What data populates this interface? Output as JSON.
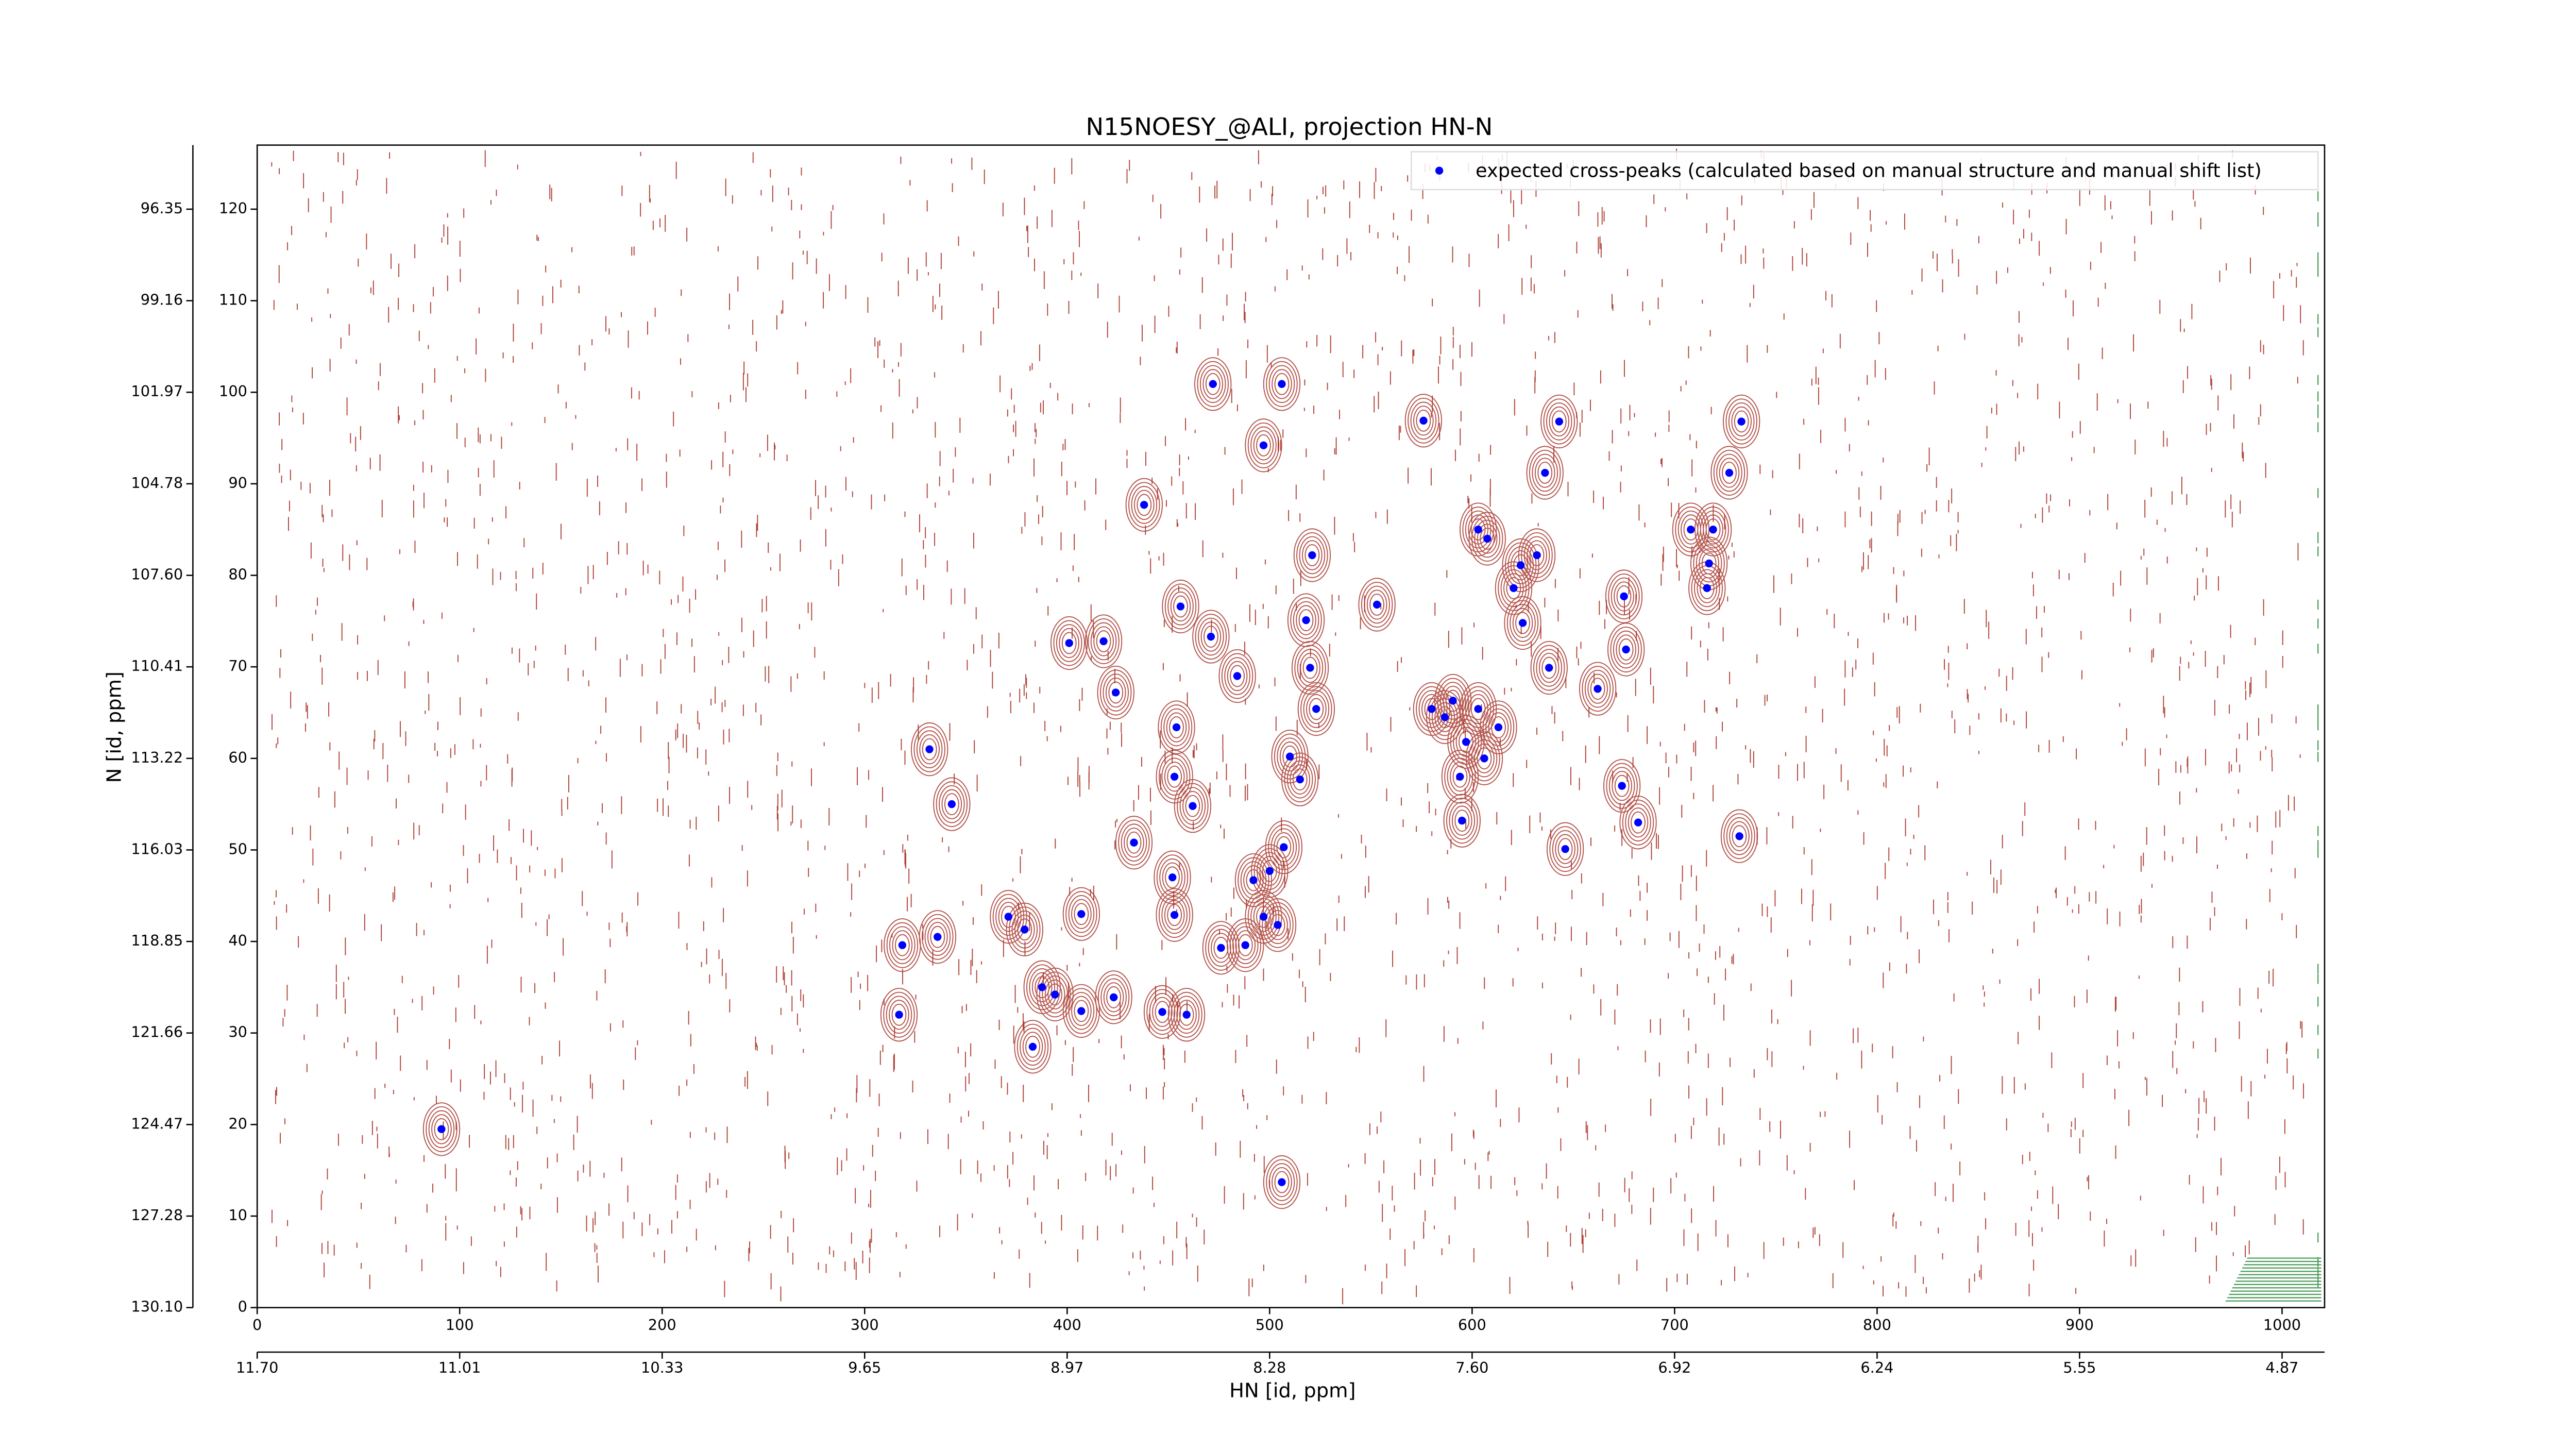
{
  "chart_data": {
    "type": "scatter",
    "title": "N15NOESY_@ALI, projection HN-N",
    "xlabel": "HN [id, ppm]",
    "ylabel": "N [id, ppm]",
    "xlim": [
      0,
      1021
    ],
    "ylim": [
      0,
      127
    ],
    "xticks": [
      0,
      100,
      200,
      300,
      400,
      500,
      600,
      700,
      800,
      900,
      1000
    ],
    "yticks": [
      0,
      10,
      20,
      30,
      40,
      50,
      60,
      70,
      80,
      90,
      100,
      110,
      120
    ],
    "xticks_ppm": [
      {
        "value": 0,
        "label": "11.70"
      },
      {
        "value": 100,
        "label": "11.01"
      },
      {
        "value": 200,
        "label": "10.33"
      },
      {
        "value": 300,
        "label": "9.65"
      },
      {
        "value": 400,
        "label": "8.97"
      },
      {
        "value": 500,
        "label": "8.28"
      },
      {
        "value": 600,
        "label": "7.60"
      },
      {
        "value": 700,
        "label": "6.92"
      },
      {
        "value": 800,
        "label": "6.24"
      },
      {
        "value": 900,
        "label": "5.55"
      },
      {
        "value": 1000,
        "label": "4.87"
      }
    ],
    "yticks_ppm": [
      {
        "value": 0,
        "label": "130.10"
      },
      {
        "value": 10,
        "label": "127.28"
      },
      {
        "value": 20,
        "label": "124.47"
      },
      {
        "value": 30,
        "label": "121.66"
      },
      {
        "value": 40,
        "label": "118.85"
      },
      {
        "value": 50,
        "label": "116.03"
      },
      {
        "value": 60,
        "label": "113.22"
      },
      {
        "value": 70,
        "label": "110.41"
      },
      {
        "value": 80,
        "label": "107.60"
      },
      {
        "value": 90,
        "label": "104.78"
      },
      {
        "value": 100,
        "label": "101.97"
      },
      {
        "value": 110,
        "label": "99.16"
      },
      {
        "value": 120,
        "label": "96.35"
      }
    ],
    "legend": "upper right",
    "series": [
      {
        "name": "expected cross-peaks (calculated based on manual structure and manual shift list)",
        "color": "#0000ff",
        "x": [
          91,
          317,
          318.6,
          336,
          332,
          343,
          371,
          379,
          383,
          387.6,
          394,
          407,
          407,
          401,
          418,
          424,
          423,
          433,
          438,
          447,
          452,
          453,
          454,
          453,
          456,
          459,
          462,
          471,
          472,
          476,
          484,
          488,
          492,
          497,
          497,
          500,
          504,
          506,
          507,
          506,
          510,
          515,
          518,
          520,
          521,
          523,
          553,
          576,
          580,
          586.5,
          590.5,
          594,
          595,
          597,
          603,
          603,
          606,
          607.5,
          613,
          620.5,
          624,
          625,
          632,
          636,
          638,
          643,
          646,
          662,
          674,
          676,
          675,
          682,
          708,
          716,
          717,
          719,
          727,
          733,
          732
        ],
        "values": [
          19.5,
          32,
          39.6,
          40.5,
          61,
          55,
          42.7,
          41.3,
          28.5,
          35,
          34.2,
          32.4,
          43,
          72.6,
          72.8,
          67.2,
          33.9,
          50.8,
          87.7,
          32.3,
          47,
          42.9,
          63.4,
          58,
          76.6,
          32,
          54.8,
          73.3,
          100.9,
          39.3,
          69,
          39.6,
          46.7,
          94.2,
          42.7,
          47.7,
          41.8,
          100.9,
          50.3,
          13.7,
          60.2,
          57.7,
          75.1,
          69.9,
          82.2,
          65.4,
          76.8,
          96.9,
          65.4,
          64.5,
          66.3,
          58,
          53.2,
          61.8,
          65.4,
          85,
          60,
          84,
          63.4,
          78.6,
          81.1,
          74.8,
          82.2,
          91.2,
          69.9,
          96.8,
          50.1,
          67.6,
          57,
          71.9,
          77.7,
          53,
          85,
          78.6,
          81.3,
          85,
          91.2,
          96.8,
          51.5
        ]
      }
    ]
  }
}
